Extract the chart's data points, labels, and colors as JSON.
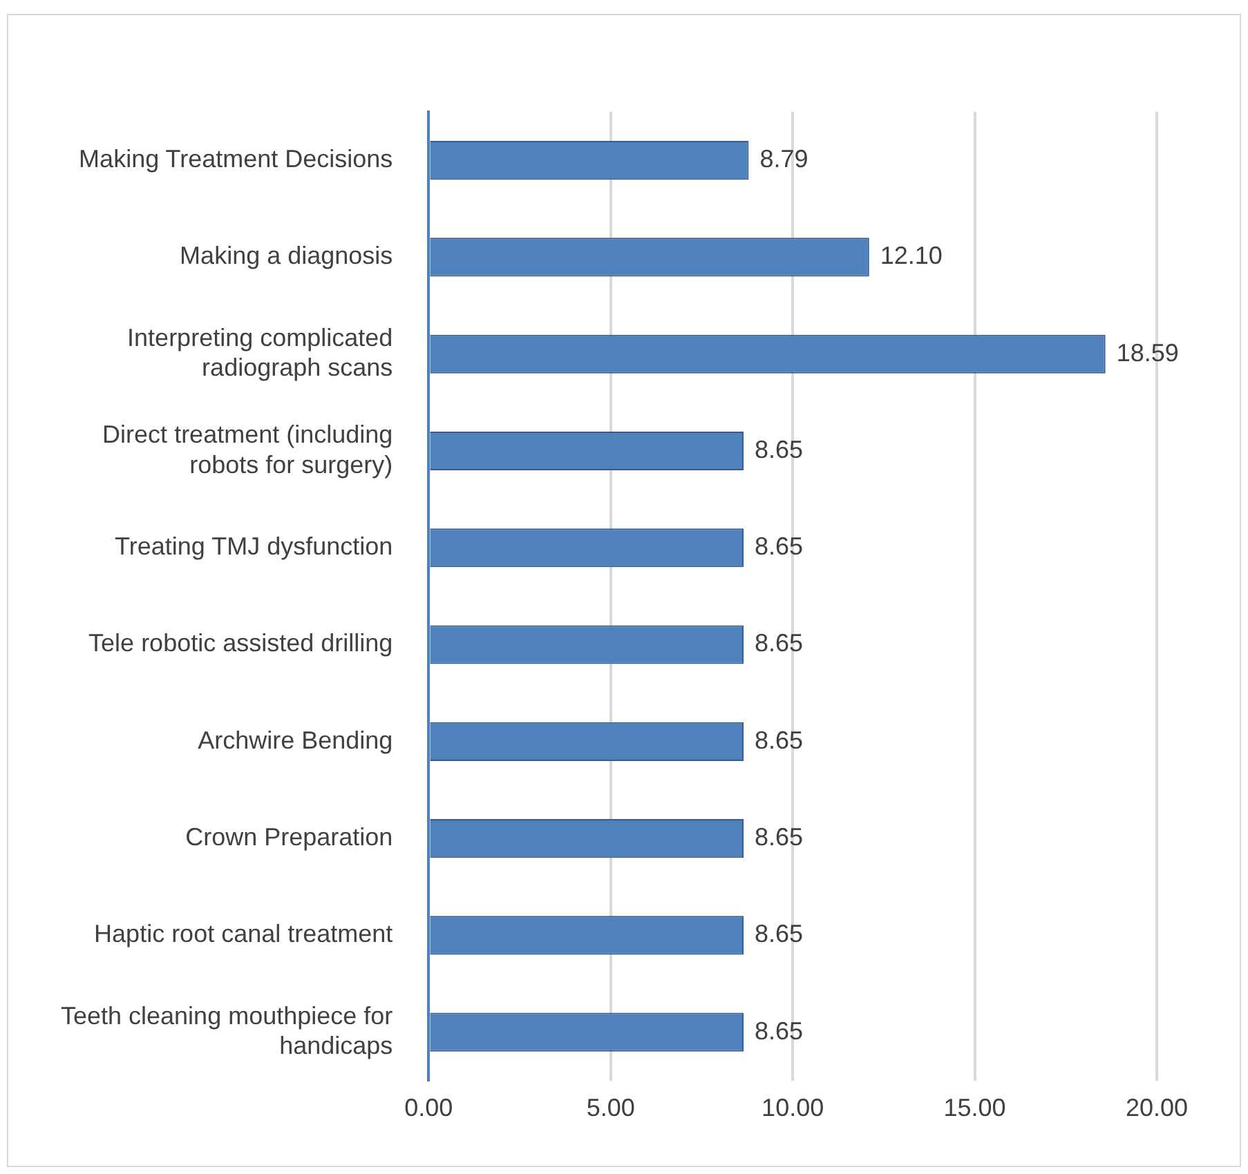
{
  "chart_data": {
    "type": "bar",
    "orientation": "horizontal",
    "categories": [
      "Making Treatment Decisions",
      "Making a diagnosis",
      "Interpreting complicated radiograph scans",
      "Direct treatment (including robots for surgery)",
      "Treating TMJ dysfunction",
      "Tele robotic assisted drilling",
      "Archwire Bending",
      "Crown Preparation",
      "Haptic root canal treatment",
      "Teeth cleaning mouthpiece for handicaps"
    ],
    "values": [
      8.79,
      12.1,
      18.59,
      8.65,
      8.65,
      8.65,
      8.65,
      8.65,
      8.65,
      8.65
    ],
    "value_labels": [
      "8.79",
      "12.10",
      "18.59",
      "8.65",
      "8.65",
      "8.65",
      "8.65",
      "8.65",
      "8.65",
      "8.65"
    ],
    "color": "#4f81bd",
    "xlim": [
      0,
      20
    ],
    "xticks": [
      {
        "value": 0,
        "label": "0.00"
      },
      {
        "value": 5,
        "label": "5.00"
      },
      {
        "value": 10,
        "label": "10.00"
      },
      {
        "value": 15,
        "label": "15.00"
      },
      {
        "value": 20,
        "label": "20.00"
      }
    ],
    "grid": "x"
  }
}
